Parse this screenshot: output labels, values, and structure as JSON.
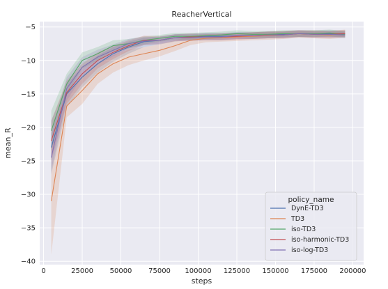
{
  "chart_data": {
    "type": "line",
    "title": "ReacherVertical",
    "xlabel": "steps",
    "ylabel": "mean_R",
    "xlim": [
      -2500,
      207000
    ],
    "ylim": [
      -40.5,
      -4.2
    ],
    "xticks": [
      0,
      25000,
      50000,
      75000,
      100000,
      125000,
      150000,
      175000,
      200000
    ],
    "yticks": [
      -40,
      -35,
      -30,
      -25,
      -20,
      -15,
      -10,
      -5
    ],
    "grid": true,
    "legend": {
      "title": "policy_name",
      "placement": "lower-right"
    },
    "x": [
      5000,
      15000,
      25000,
      35000,
      45000,
      55000,
      65000,
      75000,
      85000,
      95000,
      105000,
      115000,
      125000,
      135000,
      145000,
      155000,
      165000,
      175000,
      185000,
      195000
    ],
    "series": [
      {
        "name": "DynE-TD3",
        "color": "#4c72b0",
        "values": [
          -23,
          -15,
          -12.5,
          -10.5,
          -9.0,
          -8.0,
          -7.2,
          -7.0,
          -6.6,
          -6.5,
          -6.4,
          -6.4,
          -6.3,
          -6.3,
          -6.2,
          -6.1,
          -6.0,
          -6.0,
          -6.0,
          -6.0
        ],
        "band": [
          [
            -27,
            -19
          ],
          [
            -17,
            -13.5
          ],
          [
            -14,
            -11
          ],
          [
            -11.8,
            -9.3
          ],
          [
            -10.2,
            -8.0
          ],
          [
            -9.0,
            -7.2
          ],
          [
            -8.0,
            -6.6
          ],
          [
            -7.6,
            -6.4
          ],
          [
            -7.2,
            -6.1
          ],
          [
            -7.0,
            -6.0
          ],
          [
            -6.9,
            -5.9
          ],
          [
            -6.9,
            -5.9
          ],
          [
            -6.8,
            -5.8
          ],
          [
            -6.8,
            -5.8
          ],
          [
            -6.7,
            -5.7
          ],
          [
            -6.6,
            -5.6
          ],
          [
            -6.5,
            -5.5
          ],
          [
            -6.5,
            -5.5
          ],
          [
            -6.5,
            -5.5
          ],
          [
            -6.5,
            -5.5
          ]
        ]
      },
      {
        "name": "TD3",
        "color": "#dd8452",
        "values": [
          -31,
          -16.8,
          -14.5,
          -12.0,
          -10.5,
          -9.5,
          -9.0,
          -8.5,
          -7.8,
          -7.0,
          -6.7,
          -6.6,
          -6.5,
          -6.4,
          -6.3,
          -6.2,
          -6.0,
          -6.1,
          -6.2,
          -6.0
        ],
        "band": [
          [
            -39,
            -23
          ],
          [
            -18.5,
            -15
          ],
          [
            -16.5,
            -12.5
          ],
          [
            -13.5,
            -10.5
          ],
          [
            -11.8,
            -9.2
          ],
          [
            -10.7,
            -8.4
          ],
          [
            -10.0,
            -8.0
          ],
          [
            -9.4,
            -7.6
          ],
          [
            -8.6,
            -7.0
          ],
          [
            -7.7,
            -6.4
          ],
          [
            -7.3,
            -6.1
          ],
          [
            -7.2,
            -6.0
          ],
          [
            -7.1,
            -5.9
          ],
          [
            -7.0,
            -5.8
          ],
          [
            -6.9,
            -5.7
          ],
          [
            -6.8,
            -5.6
          ],
          [
            -6.6,
            -5.5
          ],
          [
            -6.7,
            -5.5
          ],
          [
            -6.8,
            -5.6
          ],
          [
            -6.6,
            -5.4
          ]
        ]
      },
      {
        "name": "iso-TD3",
        "color": "#55a868",
        "values": [
          -20.5,
          -13.5,
          -10.0,
          -9.0,
          -7.8,
          -7.5,
          -7.0,
          -6.7,
          -6.4,
          -6.4,
          -6.3,
          -6.2,
          -6.0,
          -6.1,
          -6.1,
          -6.0,
          -6.0,
          -6.0,
          -5.9,
          -6.1
        ],
        "band": [
          [
            -23.5,
            -17.5
          ],
          [
            -15,
            -12
          ],
          [
            -11.2,
            -8.8
          ],
          [
            -10.0,
            -8.0
          ],
          [
            -8.6,
            -7.0
          ],
          [
            -8.2,
            -6.8
          ],
          [
            -7.6,
            -6.4
          ],
          [
            -7.2,
            -6.2
          ],
          [
            -6.9,
            -5.9
          ],
          [
            -6.9,
            -5.9
          ],
          [
            -6.8,
            -5.8
          ],
          [
            -6.7,
            -5.7
          ],
          [
            -6.5,
            -5.5
          ],
          [
            -6.6,
            -5.6
          ],
          [
            -6.6,
            -5.6
          ],
          [
            -6.5,
            -5.5
          ],
          [
            -6.5,
            -5.5
          ],
          [
            -6.5,
            -5.5
          ],
          [
            -6.4,
            -5.4
          ],
          [
            -6.6,
            -5.6
          ]
        ]
      },
      {
        "name": "iso-harmonic-TD3",
        "color": "#c44e52",
        "values": [
          -22,
          -14.8,
          -12.0,
          -10.0,
          -8.8,
          -7.8,
          -7.0,
          -7.0,
          -6.6,
          -6.5,
          -6.5,
          -6.5,
          -6.4,
          -6.3,
          -6.2,
          -6.2,
          -6.0,
          -6.1,
          -6.1,
          -6.0
        ],
        "band": [
          [
            -25,
            -19
          ],
          [
            -16.5,
            -13
          ],
          [
            -13.5,
            -10.5
          ],
          [
            -11.2,
            -8.8
          ],
          [
            -9.8,
            -7.8
          ],
          [
            -8.6,
            -7.0
          ],
          [
            -7.7,
            -6.3
          ],
          [
            -7.6,
            -6.4
          ],
          [
            -7.1,
            -6.1
          ],
          [
            -7.0,
            -6.0
          ],
          [
            -7.0,
            -6.0
          ],
          [
            -7.0,
            -6.0
          ],
          [
            -6.9,
            -5.9
          ],
          [
            -6.8,
            -5.8
          ],
          [
            -6.7,
            -5.7
          ],
          [
            -6.7,
            -5.7
          ],
          [
            -6.5,
            -5.5
          ],
          [
            -6.6,
            -5.6
          ],
          [
            -6.6,
            -5.6
          ],
          [
            -6.5,
            -5.5
          ]
        ]
      },
      {
        "name": "iso-log-TD3",
        "color": "#8172b3",
        "values": [
          -24.5,
          -14.2,
          -11.0,
          -9.5,
          -8.5,
          -7.5,
          -7.1,
          -7.0,
          -6.6,
          -6.6,
          -6.5,
          -6.5,
          -6.3,
          -6.3,
          -6.2,
          -6.2,
          -6.0,
          -6.1,
          -6.1,
          -6.2
        ],
        "band": [
          [
            -26.5,
            -21
          ],
          [
            -16,
            -12.5
          ],
          [
            -12.5,
            -9.5
          ],
          [
            -10.6,
            -8.4
          ],
          [
            -9.4,
            -7.6
          ],
          [
            -8.2,
            -6.8
          ],
          [
            -7.7,
            -6.5
          ],
          [
            -7.5,
            -6.5
          ],
          [
            -7.1,
            -6.1
          ],
          [
            -7.1,
            -6.1
          ],
          [
            -7.0,
            -6.0
          ],
          [
            -7.0,
            -6.0
          ],
          [
            -6.8,
            -5.8
          ],
          [
            -6.8,
            -5.8
          ],
          [
            -6.7,
            -5.7
          ],
          [
            -6.7,
            -5.7
          ],
          [
            -6.5,
            -5.5
          ],
          [
            -6.6,
            -5.6
          ],
          [
            -6.6,
            -5.6
          ],
          [
            -6.7,
            -5.7
          ]
        ]
      }
    ]
  }
}
